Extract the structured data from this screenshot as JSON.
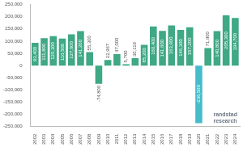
{
  "chart_data": {
    "type": "bar",
    "categories": [
      "2002",
      "2003",
      "2004",
      "2005",
      "2006",
      "2007",
      "2008",
      "2009",
      "2010",
      "2011",
      "2012",
      "2013",
      "2014",
      "2015",
      "2016",
      "2017",
      "2018",
      "2019",
      "2020",
      "2021",
      "2022",
      "2023",
      "2024"
    ],
    "values": [
      93400,
      111800,
      120300,
      110500,
      127600,
      141200,
      55300,
      -74800,
      22967,
      47000,
      5700,
      30119,
      85200,
      160400,
      141600,
      163900,
      146300,
      157200,
      -236500,
      71900,
      140800,
      205300,
      194700
    ],
    "value_labels": [
      "93,400",
      "111,800",
      "120,300",
      "110,500",
      "127,600",
      "141,200",
      "55,300",
      "-74,800",
      "22,967",
      "47,000",
      "5,700",
      "30,119",
      "85,200",
      "160,400",
      "141,600",
      "163,900",
      "146,300",
      "157,200",
      "-236,500",
      "71,900",
      "140,800",
      "205,300",
      "194,700"
    ],
    "colors": [
      "#3fa884",
      "#3fa884",
      "#3fa884",
      "#3fa884",
      "#3fa884",
      "#3fa884",
      "#3fa884",
      "#3fa884",
      "#3fa884",
      "#3fa884",
      "#3fa884",
      "#3fa884",
      "#3fa884",
      "#3fa884",
      "#3fa884",
      "#3fa884",
      "#3fa884",
      "#3fa884",
      "#45bccb",
      "#3fa884",
      "#3fa884",
      "#3fa884",
      "#3fa884"
    ],
    "ylim": [
      -250000,
      250000
    ],
    "yticks": [
      {
        "value": -250000,
        "label": "-250,000"
      },
      {
        "value": -200000,
        "label": "-200,000"
      },
      {
        "value": -150000,
        "label": "-150,000"
      },
      {
        "value": -100000,
        "label": "-100,000"
      },
      {
        "value": -50000,
        "label": "-50,000"
      },
      0,
      {
        "value": 50000,
        "label": "50,000"
      },
      {
        "value": 100000,
        "label": "100,000"
      },
      {
        "value": 150000,
        "label": "150,000"
      },
      {
        "value": 200000,
        "label": "200,000"
      },
      {
        "value": 250000,
        "label": "250,000"
      }
    ],
    "grid": false,
    "data_labels": true,
    "annotation": [
      "randstad",
      "research"
    ]
  }
}
